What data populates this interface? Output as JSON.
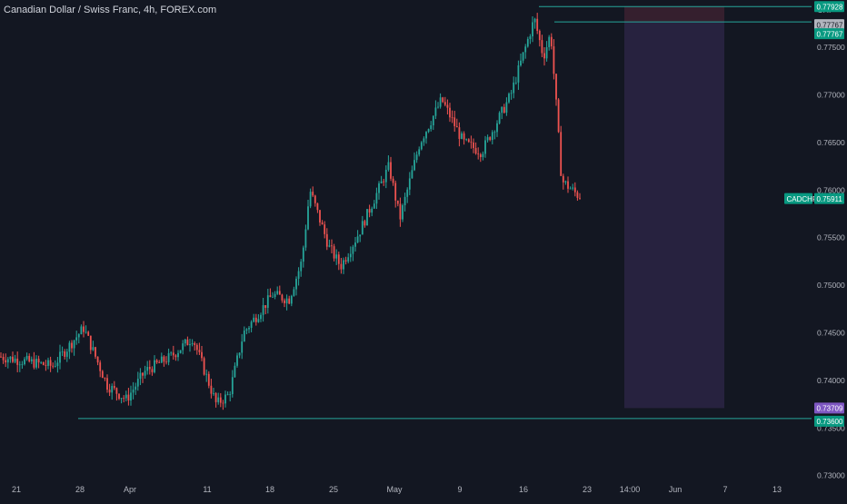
{
  "header": {
    "title": "Canadian Dollar / Swiss Franc, 4h, FOREX.com"
  },
  "chart_data": {
    "type": "candlestick",
    "symbol": "CADCHF",
    "currency": "CHF",
    "ylim": [
      0.73,
      0.78
    ],
    "y_ticks": [
      "0.77500",
      "0.77000",
      "0.76500",
      "0.76000",
      "0.75500",
      "0.75000",
      "0.74500",
      "0.74000",
      "0.73500",
      "0.73000"
    ],
    "x_ticks": [
      "21",
      "28",
      "Apr",
      "11",
      "18",
      "25",
      "May",
      "9",
      "16",
      "23",
      "14:00",
      "Jun",
      "7",
      "13"
    ],
    "anchors": [
      [
        "21",
        0.7425
      ],
      [
        "25",
        0.7415
      ],
      [
        "28",
        0.7455
      ],
      [
        "31",
        0.7395
      ],
      [
        "Apr",
        0.738
      ],
      [
        "3",
        0.741
      ],
      [
        "7",
        0.7425
      ],
      [
        "9",
        0.7445
      ],
      [
        "11",
        0.7375
      ],
      [
        "13",
        0.7385
      ],
      [
        "15",
        0.745
      ],
      [
        "18",
        0.749
      ],
      [
        "20",
        0.7485
      ],
      [
        "22",
        0.7525
      ],
      [
        "23",
        0.76
      ],
      [
        "25",
        0.754
      ],
      [
        "27",
        0.752
      ],
      [
        "29",
        0.7555
      ],
      [
        "May",
        0.7625
      ],
      [
        "3",
        0.757
      ],
      [
        "6",
        0.765
      ],
      [
        "9",
        0.7695
      ],
      [
        "11",
        0.765
      ],
      [
        "13",
        0.764
      ],
      [
        "16",
        0.77
      ],
      [
        "17",
        0.778
      ],
      [
        "19",
        0.774
      ],
      [
        "20",
        0.7765
      ],
      [
        "21",
        0.769
      ],
      [
        "22",
        0.761
      ],
      [
        "23",
        0.7591
      ]
    ],
    "price_labels": [
      {
        "text": "0.77928",
        "value": 0.77928,
        "color": "#089981"
      },
      {
        "text": "0.77767",
        "value": 0.77767,
        "color": "#b2b5be"
      },
      {
        "text": "0.77767",
        "value": 0.77767,
        "color": "#089981"
      },
      {
        "text": "0.73709",
        "value": 0.73709,
        "color": "#7e57c2"
      },
      {
        "text": "0.73600",
        "value": 0.736,
        "color": "#089981"
      }
    ],
    "current": {
      "symbol": "CADCHF",
      "value": 0.75911,
      "text": "0.75911",
      "color": "#089981"
    },
    "horizontal_lines": [
      0.77928,
      0.77767,
      0.736
    ],
    "position_box": {
      "entry": 0.77767,
      "stop": 0.77928,
      "target": 0.73709,
      "from": "23",
      "to": "7",
      "stop_color": "#3a2030",
      "target_color": "#2a2442"
    },
    "up_color": "#26a69a",
    "down_color": "#ef5350"
  }
}
